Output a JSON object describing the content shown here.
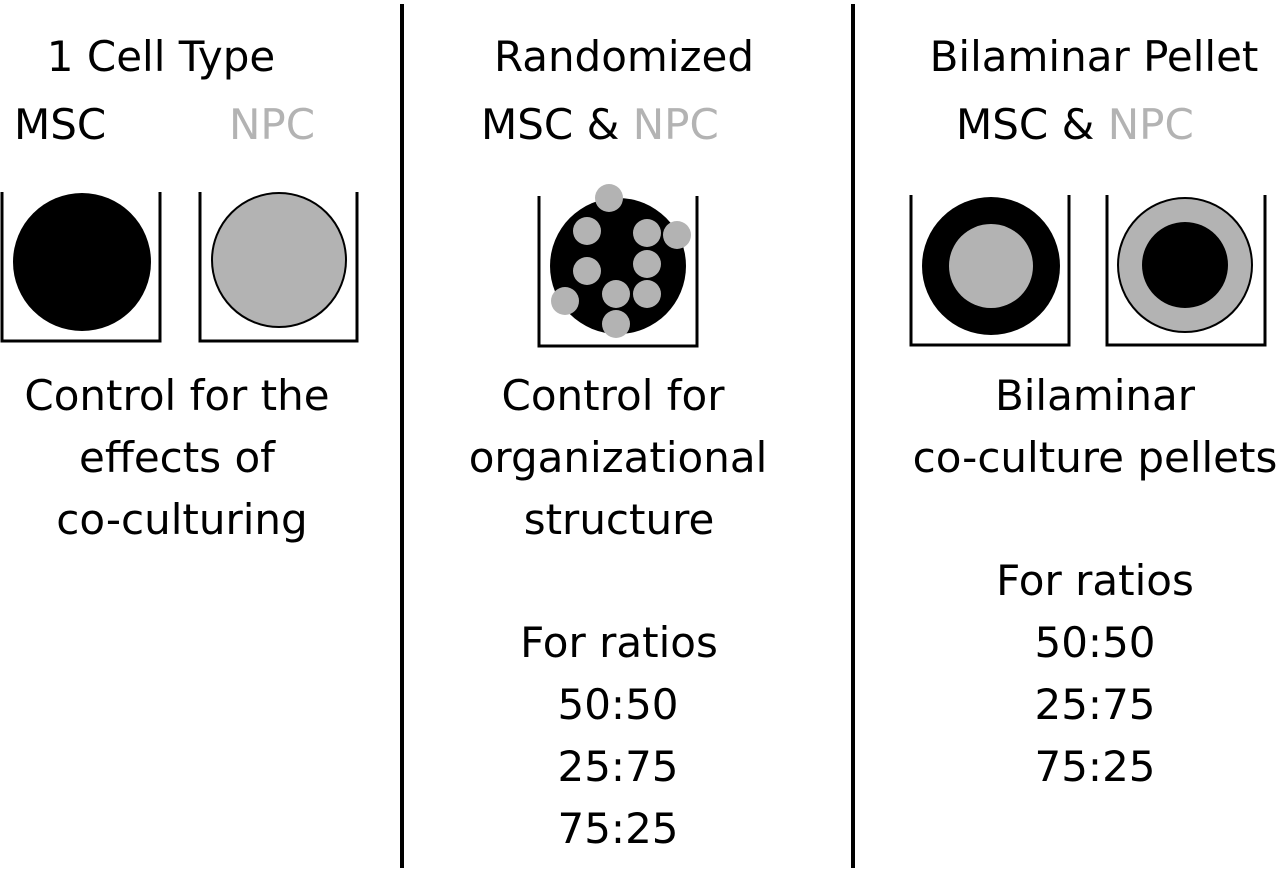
{
  "colors": {
    "msc": "#000000",
    "npc": "#b3b3b3",
    "background": "#ffffff"
  },
  "panels": [
    {
      "title": "1 Cell Type",
      "labels": {
        "msc": "MSC",
        "npc": "NPC"
      },
      "description": [
        "Control for the",
        "effects of",
        "co-culturing"
      ],
      "ratios_heading": "",
      "ratios": []
    },
    {
      "title": "Randomized",
      "labels": {
        "msc": "MSC",
        "joiner": "&",
        "npc": "NPC"
      },
      "description": [
        "Control for",
        "organizational",
        "structure"
      ],
      "ratios_heading": "For ratios",
      "ratios": [
        "50:50",
        "25:75",
        "75:25"
      ]
    },
    {
      "title": "Bilaminar Pellet",
      "labels": {
        "msc": "MSC",
        "joiner": "&",
        "npc": "NPC"
      },
      "description": [
        "Bilaminar",
        "co-culture pellets"
      ],
      "ratios_heading": "For ratios",
      "ratios": [
        "50:50",
        "25:75",
        "75:25"
      ]
    }
  ]
}
